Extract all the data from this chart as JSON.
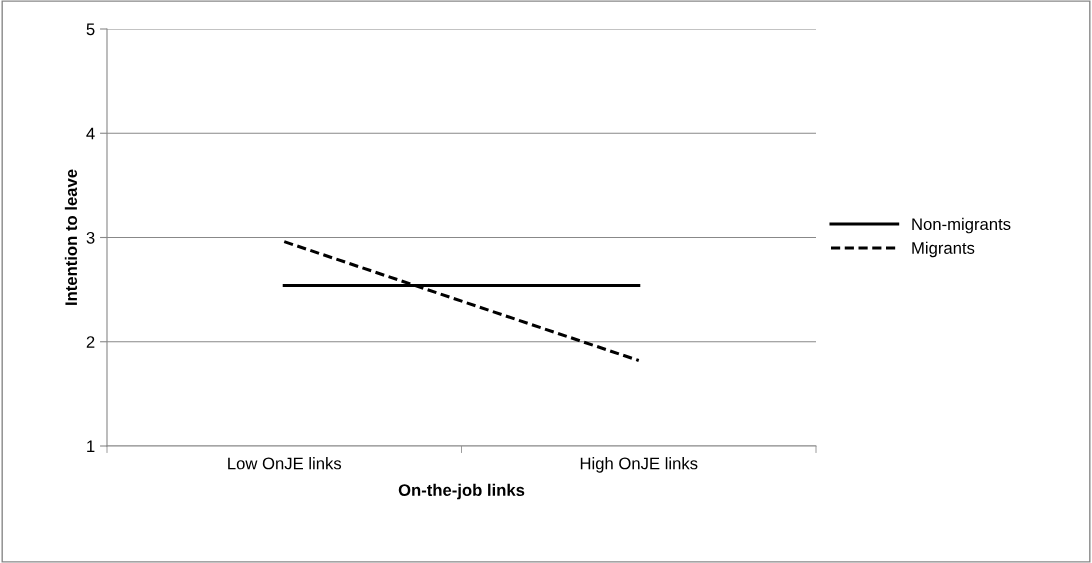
{
  "chart_data": {
    "type": "line",
    "xlabel": "On-the-job links",
    "ylabel": "Intention to leave",
    "categories": [
      "Low OnJE links",
      "High OnJE links"
    ],
    "series": [
      {
        "name": "Non-migrants",
        "color": "#000000",
        "values": [
          2.54,
          2.54
        ],
        "line_style": "solid"
      },
      {
        "name": "Migrants",
        "color": "#000000",
        "values": [
          2.96,
          1.82
        ],
        "line_style": "dashed"
      }
    ],
    "ylim": [
      1,
      5
    ],
    "yticks": [
      1,
      2,
      3,
      4,
      5
    ],
    "grid": "y",
    "legend": "right",
    "marker": "none"
  }
}
